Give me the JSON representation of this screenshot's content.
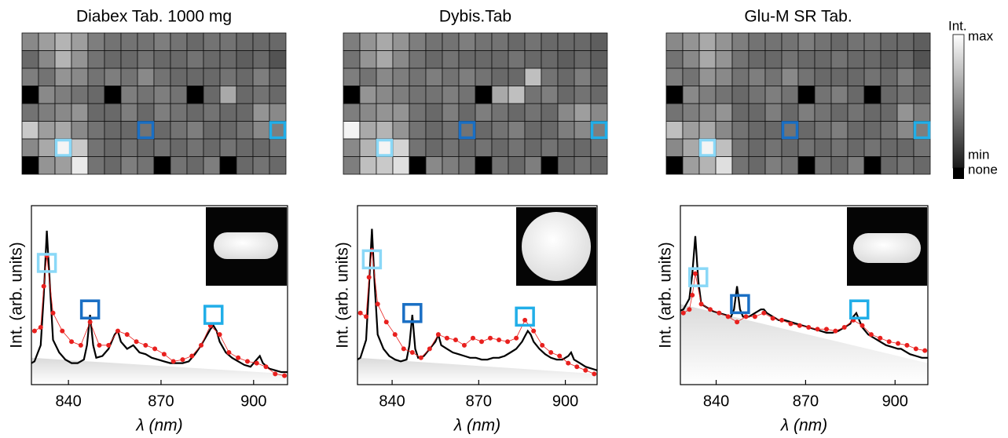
{
  "chart_data": [
    {
      "type": "heatmap",
      "title": "Diabex Tab. 1000 mg",
      "values": [
        [
          0.45,
          0.55,
          0.65,
          0.55,
          0.4,
          0.35,
          0.35,
          0.35,
          0.4,
          0.35,
          0.3,
          0.35,
          0.35,
          0.3,
          0.3,
          0.3
        ],
        [
          0.3,
          0.45,
          0.65,
          0.5,
          0.35,
          0.3,
          0.3,
          0.35,
          0.3,
          0.3,
          0.35,
          0.3,
          0.3,
          0.25,
          0.3,
          0.2
        ],
        [
          0.4,
          0.35,
          0.5,
          0.45,
          0.35,
          0.4,
          0.35,
          0.45,
          0.35,
          0.3,
          0.3,
          0.3,
          0.35,
          0.3,
          0.4,
          0.3
        ],
        [
          0,
          0.45,
          0.4,
          0.35,
          0.3,
          0,
          0.4,
          0.35,
          0.4,
          0.35,
          0,
          0.3,
          0.6,
          0.3,
          0.35,
          0.3
        ],
        [
          0.35,
          0.4,
          0.45,
          0.5,
          0.3,
          0.3,
          0.4,
          0.3,
          0.4,
          0.35,
          0.3,
          0.35,
          0.3,
          0.3,
          0.5,
          0.45
        ],
        [
          0.75,
          0.55,
          0.6,
          0.45,
          0.35,
          0.3,
          0.3,
          0.35,
          0.3,
          0.35,
          0.4,
          0.3,
          0.3,
          0.35,
          0.45,
          0.4
        ],
        [
          0.45,
          0.6,
          0.95,
          0.75,
          0.35,
          0.3,
          0.35,
          0.3,
          0.35,
          0.3,
          0.35,
          0.3,
          0.35,
          0.3,
          0.3,
          0.35
        ],
        [
          0,
          0.5,
          0.55,
          0.9,
          0.35,
          0.3,
          0.4,
          0.35,
          0,
          0.35,
          0.3,
          0.4,
          0,
          0.3,
          0.35,
          0.3
        ]
      ],
      "highlights": [
        {
          "row": 6,
          "col": 2,
          "color": "#8ad8f7"
        },
        {
          "row": 5,
          "col": 7,
          "color": "#1a6fc4"
        },
        {
          "row": 5,
          "col": 15,
          "color": "#21aee8"
        }
      ]
    },
    {
      "type": "heatmap",
      "title": "Dybis.Tab",
      "values": [
        [
          0.4,
          0.5,
          0.6,
          0.5,
          0.4,
          0.35,
          0.35,
          0.4,
          0.35,
          0.35,
          0.3,
          0.35,
          0.3,
          0.3,
          0.3,
          0.25
        ],
        [
          0.35,
          0.5,
          0.6,
          0.45,
          0.35,
          0.3,
          0.35,
          0.3,
          0.3,
          0.3,
          0.35,
          0.3,
          0.3,
          0.25,
          0.3,
          0.25
        ],
        [
          0.4,
          0.35,
          0.45,
          0.4,
          0.35,
          0.4,
          0.35,
          0.4,
          0.35,
          0.3,
          0.3,
          0.7,
          0.35,
          0.3,
          0.4,
          0.3
        ],
        [
          0,
          0.5,
          0.45,
          0.4,
          0.35,
          0.35,
          0.4,
          0.35,
          0,
          0.6,
          0.7,
          0.35,
          0.4,
          0.3,
          0.35,
          0.3
        ],
        [
          0.4,
          0.45,
          0.5,
          0.5,
          0.35,
          0.3,
          0.4,
          0.3,
          0.4,
          0.35,
          0.3,
          0.35,
          0.3,
          0.45,
          0.55,
          0.45
        ],
        [
          0.95,
          0.6,
          0.65,
          0.5,
          0.35,
          0.3,
          0.35,
          0.35,
          0.3,
          0.35,
          0.4,
          0.3,
          0.3,
          0.4,
          0.45,
          0.4
        ],
        [
          0.45,
          0.65,
          0.95,
          0.8,
          0.35,
          0.3,
          0.35,
          0.3,
          0.35,
          0.3,
          0.35,
          0.3,
          0.35,
          0.3,
          0.3,
          0.35
        ],
        [
          0.4,
          0.7,
          0.75,
          0.85,
          0,
          0.45,
          0.4,
          0.35,
          0,
          0.35,
          0.3,
          0.4,
          0,
          0.3,
          0.35,
          0.3
        ]
      ],
      "highlights": [
        {
          "row": 6,
          "col": 2,
          "color": "#8ad8f7"
        },
        {
          "row": 5,
          "col": 7,
          "color": "#1a6fc4"
        },
        {
          "row": 5,
          "col": 15,
          "color": "#21aee8"
        }
      ]
    },
    {
      "type": "heatmap",
      "title": "Glu-M SR Tab.",
      "values": [
        [
          0.45,
          0.5,
          0.6,
          0.5,
          0.4,
          0.35,
          0.35,
          0.35,
          0.4,
          0.35,
          0.3,
          0.35,
          0.35,
          0.3,
          0.3,
          0.25
        ],
        [
          0.35,
          0.45,
          0.6,
          0.5,
          0.35,
          0.3,
          0.3,
          0.35,
          0.3,
          0.3,
          0.35,
          0.3,
          0.3,
          0.25,
          0.3,
          0.2
        ],
        [
          0.4,
          0.35,
          0.5,
          0.45,
          0.35,
          0.4,
          0.35,
          0.45,
          0.35,
          0.3,
          0.3,
          0.3,
          0.35,
          0.3,
          0.4,
          0.3
        ],
        [
          0,
          0.45,
          0.4,
          0.35,
          0.3,
          0.35,
          0.4,
          0.35,
          0,
          0.35,
          0.4,
          0.3,
          0,
          0.3,
          0.35,
          0.3
        ],
        [
          0.35,
          0.4,
          0.45,
          0.5,
          0.3,
          0.3,
          0.4,
          0.3,
          0.4,
          0.35,
          0.3,
          0.35,
          0.3,
          0.3,
          0.5,
          0.4
        ],
        [
          0.7,
          0.55,
          0.6,
          0.45,
          0.35,
          0.3,
          0.3,
          0.35,
          0.3,
          0.35,
          0.4,
          0.3,
          0.3,
          0.35,
          0.45,
          0.4
        ],
        [
          0.45,
          0.6,
          0.95,
          0.7,
          0.35,
          0.3,
          0.35,
          0.3,
          0.35,
          0.3,
          0.35,
          0.3,
          0.35,
          0.3,
          0.3,
          0.35
        ],
        [
          0,
          0.55,
          0.65,
          0.85,
          0.35,
          0.3,
          0.4,
          0.35,
          0,
          0.35,
          0.3,
          0.4,
          0,
          0.3,
          0.35,
          0.3
        ]
      ],
      "highlights": [
        {
          "row": 6,
          "col": 2,
          "color": "#8ad8f7"
        },
        {
          "row": 5,
          "col": 7,
          "color": "#1a6fc4"
        },
        {
          "row": 5,
          "col": 15,
          "color": "#21aee8"
        }
      ]
    },
    {
      "type": "colorbar",
      "title": "Int.",
      "labels": [
        "max",
        "min",
        "none"
      ]
    },
    {
      "type": "spectrum",
      "xlabel": "λ (nm)",
      "ylabel": "Int. (arb. units)",
      "xlim": [
        828,
        911
      ],
      "ylim": [
        0,
        1
      ],
      "xticks": [
        840,
        870,
        900
      ],
      "series": [
        {
          "type": "line",
          "color": "#000000",
          "x": [
            826,
            829,
            831,
            832,
            833,
            834,
            835,
            837,
            839,
            841,
            843,
            845,
            846,
            847,
            848,
            849,
            851,
            853,
            855,
            856,
            857,
            859,
            861,
            863,
            865,
            867,
            869,
            871,
            873,
            875,
            877,
            879,
            881,
            883,
            885,
            886,
            887,
            888,
            889,
            891,
            893,
            895,
            897,
            899,
            901,
            902,
            903,
            905,
            907,
            909,
            911
          ],
          "values": [
            0.1,
            0.13,
            0.22,
            0.5,
            0.86,
            0.55,
            0.25,
            0.18,
            0.14,
            0.12,
            0.12,
            0.14,
            0.22,
            0.39,
            0.22,
            0.15,
            0.16,
            0.2,
            0.28,
            0.3,
            0.24,
            0.2,
            0.22,
            0.18,
            0.17,
            0.15,
            0.14,
            0.13,
            0.12,
            0.12,
            0.12,
            0.13,
            0.17,
            0.22,
            0.28,
            0.31,
            0.33,
            0.3,
            0.24,
            0.18,
            0.15,
            0.13,
            0.11,
            0.1,
            0.14,
            0.16,
            0.12,
            0.09,
            0.08,
            0.07,
            0.07
          ]
        },
        {
          "type": "scatter",
          "color": "#e8201e",
          "x": [
            829,
            831,
            832,
            833,
            835,
            838,
            841,
            844,
            847,
            850,
            853,
            856,
            859,
            862,
            865,
            868,
            871,
            874,
            877,
            880,
            883,
            886,
            889,
            892,
            895,
            898,
            901,
            904,
            907,
            910
          ],
          "values": [
            0.3,
            0.32,
            0.55,
            0.72,
            0.4,
            0.3,
            0.24,
            0.22,
            0.35,
            0.22,
            0.22,
            0.3,
            0.28,
            0.24,
            0.22,
            0.2,
            0.17,
            0.13,
            0.14,
            0.16,
            0.22,
            0.33,
            0.28,
            0.18,
            0.15,
            0.13,
            0.12,
            0.1,
            0.06,
            0.05
          ]
        }
      ],
      "markers": [
        {
          "x": 833,
          "y": 0.68,
          "color": "#8ad8f7"
        },
        {
          "x": 847,
          "y": 0.42,
          "color": "#1a6fc4"
        },
        {
          "x": 887,
          "y": 0.39,
          "color": "#21aee8"
        }
      ]
    },
    {
      "type": "spectrum",
      "xlabel": "λ (nm)",
      "ylabel": "Int. (arb. units)",
      "xlim": [
        828,
        911
      ],
      "ylim": [
        0,
        1
      ],
      "xticks": [
        840,
        870,
        900
      ],
      "series": [
        {
          "type": "line",
          "color": "#000000",
          "x": [
            826,
            829,
            831,
            832,
            833,
            834,
            835,
            837,
            839,
            841,
            843,
            845,
            846,
            847,
            848,
            849,
            851,
            853,
            855,
            856,
            857,
            859,
            861,
            863,
            865,
            867,
            869,
            871,
            873,
            875,
            877,
            879,
            881,
            883,
            885,
            886,
            887,
            888,
            889,
            891,
            893,
            895,
            897,
            899,
            901,
            902,
            903,
            905,
            907,
            909,
            911
          ],
          "values": [
            0.12,
            0.15,
            0.25,
            0.55,
            0.87,
            0.55,
            0.28,
            0.2,
            0.16,
            0.14,
            0.13,
            0.14,
            0.22,
            0.39,
            0.2,
            0.15,
            0.16,
            0.2,
            0.24,
            0.28,
            0.22,
            0.2,
            0.18,
            0.17,
            0.16,
            0.15,
            0.15,
            0.14,
            0.14,
            0.15,
            0.15,
            0.16,
            0.18,
            0.2,
            0.24,
            0.27,
            0.3,
            0.28,
            0.24,
            0.2,
            0.17,
            0.15,
            0.14,
            0.14,
            0.16,
            0.18,
            0.14,
            0.12,
            0.1,
            0.09,
            0.08
          ]
        },
        {
          "type": "scatter",
          "color": "#e8201e",
          "x": [
            829,
            831,
            832,
            833,
            835,
            838,
            841,
            844,
            847,
            850,
            853,
            856,
            859,
            862,
            865,
            868,
            871,
            874,
            877,
            880,
            883,
            886,
            889,
            892,
            895,
            898,
            901,
            904,
            907,
            910
          ],
          "values": [
            0.4,
            0.38,
            0.6,
            0.75,
            0.45,
            0.35,
            0.28,
            0.2,
            0.18,
            0.15,
            0.2,
            0.28,
            0.26,
            0.25,
            0.22,
            0.26,
            0.24,
            0.26,
            0.25,
            0.24,
            0.26,
            0.36,
            0.3,
            0.22,
            0.18,
            0.16,
            0.12,
            0.1,
            0.08,
            0.06
          ]
        }
      ],
      "markers": [
        {
          "x": 833,
          "y": 0.7,
          "color": "#8ad8f7"
        },
        {
          "x": 847,
          "y": 0.4,
          "color": "#1a6fc4"
        },
        {
          "x": 886,
          "y": 0.38,
          "color": "#21aee8"
        }
      ]
    },
    {
      "type": "spectrum",
      "xlabel": "λ (nm)",
      "ylabel": "Int. (arb. units)",
      "xlim": [
        828,
        911
      ],
      "ylim": [
        0,
        1
      ],
      "xticks": [
        840,
        870,
        900
      ],
      "series": [
        {
          "type": "line",
          "color": "#000000",
          "x": [
            826,
            829,
            831,
            832,
            833,
            834,
            835,
            837,
            839,
            841,
            843,
            845,
            846,
            847,
            848,
            849,
            851,
            853,
            855,
            856,
            857,
            859,
            861,
            863,
            865,
            867,
            869,
            871,
            873,
            875,
            877,
            879,
            881,
            883,
            885,
            886,
            887,
            888,
            889,
            891,
            893,
            895,
            897,
            899,
            901,
            902,
            903,
            905,
            907,
            909,
            911
          ],
          "values": [
            0.4,
            0.42,
            0.48,
            0.62,
            0.83,
            0.58,
            0.45,
            0.43,
            0.41,
            0.4,
            0.39,
            0.38,
            0.42,
            0.55,
            0.42,
            0.38,
            0.38,
            0.4,
            0.42,
            0.42,
            0.4,
            0.38,
            0.36,
            0.36,
            0.35,
            0.34,
            0.33,
            0.32,
            0.31,
            0.3,
            0.29,
            0.29,
            0.3,
            0.32,
            0.34,
            0.38,
            0.4,
            0.36,
            0.32,
            0.28,
            0.26,
            0.24,
            0.22,
            0.21,
            0.2,
            0.2,
            0.19,
            0.17,
            0.16,
            0.15,
            0.15
          ]
        },
        {
          "type": "scatter",
          "color": "#e8201e",
          "x": [
            829,
            831,
            832,
            833,
            835,
            838,
            841,
            844,
            847,
            850,
            853,
            856,
            859,
            862,
            865,
            868,
            871,
            874,
            877,
            880,
            883,
            886,
            889,
            892,
            895,
            898,
            901,
            904,
            907,
            910
          ],
          "values": [
            0.4,
            0.42,
            0.5,
            0.62,
            0.45,
            0.42,
            0.4,
            0.38,
            0.35,
            0.38,
            0.38,
            0.4,
            0.37,
            0.36,
            0.34,
            0.33,
            0.32,
            0.31,
            0.31,
            0.3,
            0.32,
            0.36,
            0.33,
            0.28,
            0.26,
            0.24,
            0.23,
            0.22,
            0.2,
            0.19
          ]
        }
      ],
      "markers": [
        {
          "x": 834,
          "y": 0.6,
          "color": "#8ad8f7"
        },
        {
          "x": 848,
          "y": 0.45,
          "color": "#1a6fc4"
        },
        {
          "x": 888,
          "y": 0.42,
          "color": "#21aee8"
        }
      ]
    }
  ]
}
